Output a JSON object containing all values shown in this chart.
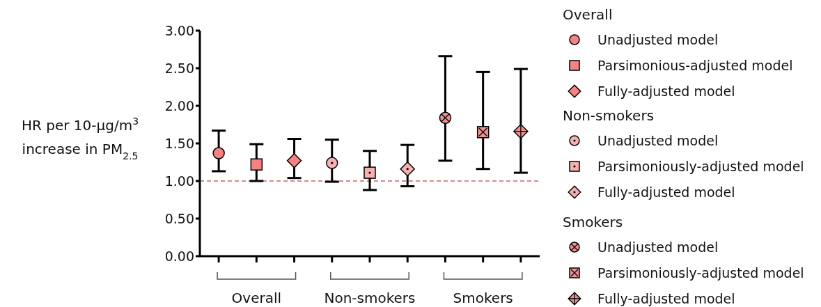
{
  "chart_data": {
    "type": "scatter",
    "ylabel": "HR per 10-μg/m$^{3}$\nincrease in  PM$_{2.5}$",
    "categories": [
      null,
      "Overall",
      null,
      null,
      "Non-smokers",
      null,
      null,
      "Smokers",
      null
    ],
    "ylim": [
      0,
      3
    ],
    "yticks": [
      {
        "value": 0,
        "label": "0.00"
      },
      {
        "value": 0.5,
        "label": "0.50"
      },
      {
        "value": 1,
        "label": "1.00"
      },
      {
        "value": 1.5,
        "label": "1.50"
      },
      {
        "value": 2,
        "label": "2.00"
      },
      {
        "value": 2.5,
        "label": "2.50"
      },
      {
        "value": 3,
        "label": "3.00"
      }
    ],
    "annotations": [
      "Overall",
      "Non-smokers",
      "Smokers"
    ],
    "legend": "right",
    "grid": false,
    "ref_lines": [
      {
        "axis": "y",
        "value": 1,
        "color": "#c86464",
        "line_style": "dashed"
      }
    ],
    "series": [
      {
        "name": "Unadjusted model",
        "color": "#f58383",
        "marker": "circle",
        "values": [
          1.37,
          null,
          null,
          null,
          null,
          null,
          null,
          null,
          null
        ],
        "errors": [
          [
            1.13,
            1.67
          ],
          null,
          null,
          null,
          null,
          null,
          null,
          null,
          null
        ]
      },
      {
        "name": "Parsimonious-adjusted model",
        "color": "#f58383",
        "marker": "square",
        "values": [
          null,
          1.22,
          null,
          null,
          null,
          null,
          null,
          null,
          null
        ],
        "errors": [
          null,
          [
            1.0,
            1.49
          ],
          null,
          null,
          null,
          null,
          null,
          null,
          null
        ]
      },
      {
        "name": "Fully-adjusted model",
        "color": "#f58383",
        "marker": "diamond",
        "values": [
          null,
          null,
          1.27,
          null,
          null,
          null,
          null,
          null,
          null
        ],
        "errors": [
          null,
          null,
          [
            1.04,
            1.56
          ],
          null,
          null,
          null,
          null,
          null,
          null
        ]
      },
      {
        "name": "Unadjusted model",
        "color": "#f9b0b0",
        "marker": "circle",
        "values": [
          null,
          null,
          null,
          1.24,
          null,
          null,
          null,
          null,
          null
        ],
        "errors": [
          null,
          null,
          null,
          [
            0.99,
            1.55
          ],
          null,
          null,
          null,
          null,
          null
        ]
      },
      {
        "name": "Parsimoniously-adjusted model",
        "color": "#f9b0b0",
        "marker": "square",
        "values": [
          null,
          null,
          null,
          null,
          1.11,
          null,
          null,
          null,
          null
        ],
        "errors": [
          null,
          null,
          null,
          null,
          [
            0.88,
            1.4
          ],
          null,
          null,
          null,
          null
        ]
      },
      {
        "name": "Fully-adjusted model",
        "color": "#f9b0b0",
        "marker": "diamond",
        "values": [
          null,
          null,
          null,
          null,
          null,
          1.16,
          null,
          null,
          null
        ],
        "errors": [
          null,
          null,
          null,
          null,
          null,
          [
            0.93,
            1.48
          ],
          null,
          null,
          null
        ]
      },
      {
        "name": "Unadjusted model",
        "color": "#f09090",
        "marker": "circle",
        "values": [
          null,
          null,
          null,
          null,
          null,
          null,
          1.84,
          null,
          null
        ],
        "errors": [
          null,
          null,
          null,
          null,
          null,
          null,
          [
            1.27,
            2.66
          ],
          null,
          null
        ]
      },
      {
        "name": "Parsimoniously-adjusted model",
        "color": "#f09090",
        "marker": "square",
        "values": [
          null,
          null,
          null,
          null,
          null,
          null,
          null,
          1.65,
          null
        ],
        "errors": [
          null,
          null,
          null,
          null,
          null,
          null,
          null,
          [
            1.16,
            2.45
          ],
          null
        ]
      },
      {
        "name": "Fully-adjusted model",
        "color": "#f09090",
        "marker": "diamond",
        "values": [
          null,
          null,
          null,
          null,
          null,
          null,
          null,
          null,
          1.66
        ],
        "errors": [
          null,
          null,
          null,
          null,
          null,
          null,
          null,
          null,
          [
            1.11,
            2.49
          ]
        ]
      }
    ]
  }
}
